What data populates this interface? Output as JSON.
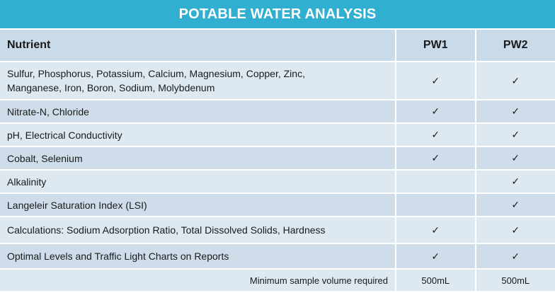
{
  "title": "POTABLE WATER ANALYSIS",
  "header": {
    "nutrient": "Nutrient",
    "pw1": "PW1",
    "pw2": "PW2"
  },
  "check_glyph": "✓",
  "rows": [
    {
      "nutrient_line1": "Sulfur, Phosphorus, Potassium, Calcium, Magnesium, Copper, Zinc,",
      "nutrient_line2": "Manganese, Iron, Boron, Sodium, Molybdenum",
      "pw1": true,
      "pw2": true
    },
    {
      "nutrient_line1": "Nitrate-N, Chloride",
      "pw1": true,
      "pw2": true
    },
    {
      "nutrient_line1": "pH, Electrical Conductivity",
      "pw1": true,
      "pw2": true
    },
    {
      "nutrient_line1": "Cobalt, Selenium",
      "pw1": true,
      "pw2": true
    },
    {
      "nutrient_line1": "Alkalinity",
      "pw1": false,
      "pw2": true
    },
    {
      "nutrient_line1": "Langeleir Saturation Index (LSI)",
      "pw1": false,
      "pw2": true
    },
    {
      "nutrient_line1": "Calculations: Sodium Adsorption Ratio, Total Dissolved Solids, Hardness",
      "pw1": true,
      "pw2": true
    },
    {
      "nutrient_line1": "Optimal Levels  and Traffic Light Charts on Reports",
      "pw1": true,
      "pw2": true
    }
  ],
  "footer": {
    "label": "Minimum sample volume required",
    "pw1": "500mL",
    "pw2": "500mL"
  },
  "colors": {
    "banner": "#31afd0",
    "header_bg": "#c9dbe8",
    "row_light": "#dde8f1",
    "row_dark": "#cedde9"
  }
}
